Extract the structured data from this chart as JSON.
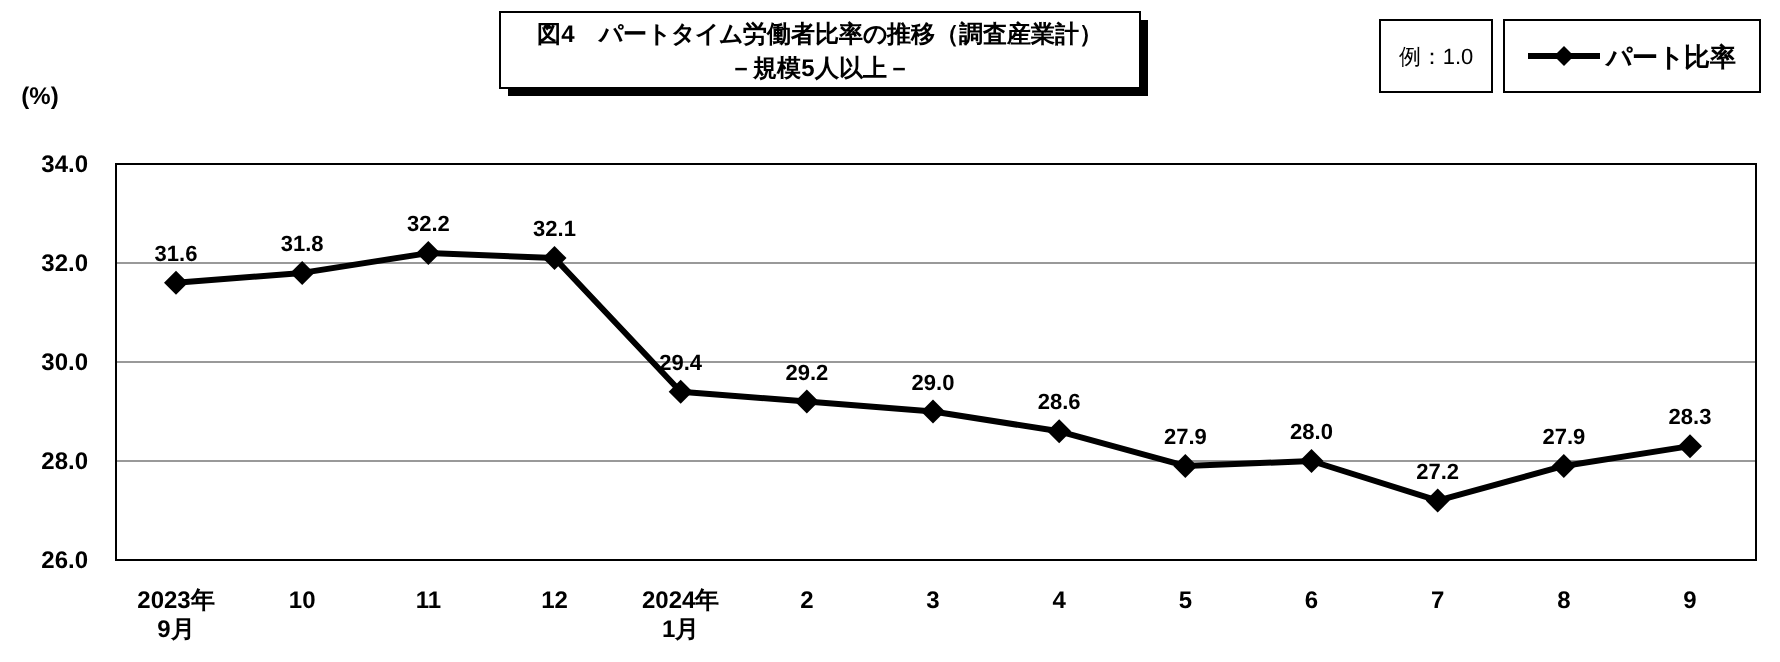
{
  "chart_data": {
    "type": "line",
    "title": "図4　パートタイム労働者比率の推移（調査産業計）",
    "subtitle": "－規模5人以上－",
    "ylabel": "(%)",
    "annotations": [
      "例：1.0"
    ],
    "categories": [
      "2023年\n9月",
      "10",
      "11",
      "12",
      "2024年\n1月",
      "2",
      "3",
      "4",
      "5",
      "6",
      "7",
      "8",
      "9"
    ],
    "series": [
      {
        "name": "パート比率",
        "color": "#000000",
        "values": [
          31.6,
          31.8,
          32.2,
          32.1,
          29.4,
          29.2,
          29.0,
          28.6,
          27.9,
          28.0,
          27.2,
          27.9,
          28.3
        ],
        "value_labels": [
          "31.6",
          "31.8",
          "32.2",
          "32.1",
          "29.4",
          "29.2",
          "29.0",
          "28.6",
          "27.9",
          "28.0",
          "27.2",
          "27.9",
          "28.3"
        ]
      }
    ],
    "ylim": [
      26,
      34
    ],
    "yticks": [
      {
        "value": 26,
        "label": "26.0"
      },
      {
        "value": 28,
        "label": "28.0"
      },
      {
        "value": 30,
        "label": "30.0"
      },
      {
        "value": 32,
        "label": "32.0"
      },
      {
        "value": 34,
        "label": "34.0"
      }
    ],
    "grid": "y",
    "legend": "top right",
    "marker": "diamond",
    "line_style": "solid"
  }
}
